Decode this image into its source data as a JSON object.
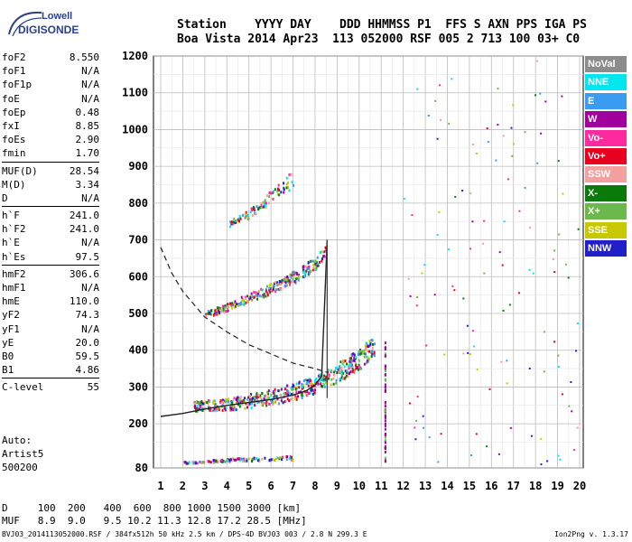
{
  "logo": {
    "line1": "Lowell",
    "line2": "DIGISONDE"
  },
  "header": {
    "labels": "Station    YYYY DAY    DDD HHMMSS P1  FFS S AXN PPS IGA PS",
    "values": "Boa Vista 2014 Apr23  113 052000 RSF 005 2 713 100 03+ C0"
  },
  "params": [
    {
      "k": "foF2",
      "v": "8.550"
    },
    {
      "k": "foF1",
      "v": "N/A"
    },
    {
      "k": "foF1p",
      "v": "N/A"
    },
    {
      "k": "foE",
      "v": "N/A"
    },
    {
      "k": "foEp",
      "v": "0.48"
    },
    {
      "k": "fxI",
      "v": "8.85"
    },
    {
      "k": "foEs",
      "v": "2.90"
    },
    {
      "k": "fmin",
      "v": "1.70"
    },
    {
      "k": "MUF(D)",
      "v": "28.54"
    },
    {
      "k": "M(D)",
      "v": "3.34"
    },
    {
      "k": "D",
      "v": "N/A"
    },
    {
      "k": "h`F",
      "v": "241.0"
    },
    {
      "k": "h`F2",
      "v": "241.0"
    },
    {
      "k": "h`E",
      "v": "N/A"
    },
    {
      "k": "h`Es",
      "v": "97.5"
    },
    {
      "k": "hmF2",
      "v": "306.6"
    },
    {
      "k": "hmF1",
      "v": "N/A"
    },
    {
      "k": "hmE",
      "v": "110.0"
    },
    {
      "k": "yF2",
      "v": "74.3"
    },
    {
      "k": "yF1",
      "v": "N/A"
    },
    {
      "k": "yE",
      "v": "20.0"
    },
    {
      "k": "B0",
      "v": "59.5"
    },
    {
      "k": "B1",
      "v": "4.86"
    },
    {
      "k": "C-level",
      "v": "55"
    }
  ],
  "auto": {
    "line1": "Auto:",
    "line2": "Artist5",
    "line3": "500200"
  },
  "legend": [
    {
      "label": "NoVal",
      "color": "#8c8c8c"
    },
    {
      "label": "NNE",
      "color": "#00e5ee"
    },
    {
      "label": "E",
      "color": "#3a9cf0"
    },
    {
      "label": "W",
      "color": "#a0009c"
    },
    {
      "label": "Vo-",
      "color": "#ff2aa0"
    },
    {
      "label": "Vo+",
      "color": "#e80020"
    },
    {
      "label": "SSW",
      "color": "#f4a0a0"
    },
    {
      "label": "X-",
      "color": "#0a7a0a"
    },
    {
      "label": "X+",
      "color": "#6cb84a"
    },
    {
      "label": "SSE",
      "color": "#c8c800"
    },
    {
      "label": "NNW",
      "color": "#2020c8"
    }
  ],
  "footer": {
    "d_row": "D     100  200   400  600  800 1000 1500 3000 [km]",
    "muf_row": "MUF   8.9  9.0   9.5 10.2 11.3 12.8 17.2 28.5 [MHz]"
  },
  "bottom": {
    "left": "BVJ03_2014113052000.RSF / 384fx512h 50 kHz 2.5 km / DPS-4D BVJ03 003 / 2.8 N 299.3 E",
    "right": "Ion2Png v. 1.3.17"
  },
  "chart_data": {
    "type": "scatter",
    "title": "",
    "xlabel": "",
    "ylabel": "",
    "xlim": [
      1,
      20
    ],
    "ylim": [
      80,
      1200
    ],
    "xticks": [
      1,
      2,
      3,
      4,
      5,
      6,
      7,
      8,
      9,
      10,
      11,
      12,
      13,
      14,
      15,
      16,
      17,
      18,
      19,
      20
    ],
    "yticks": [
      80,
      200,
      300,
      400,
      500,
      600,
      700,
      800,
      900,
      1000,
      1100,
      1200
    ],
    "grid": true,
    "traces": [
      {
        "name": "F2 O-trace",
        "x": [
          2.5,
          4,
          5,
          6,
          7,
          8,
          9,
          10,
          10.7
        ],
        "y": [
          250,
          255,
          265,
          275,
          290,
          310,
          340,
          380,
          420
        ]
      },
      {
        "name": "F2 2-hop",
        "x": [
          3,
          4,
          5,
          6,
          7,
          8,
          8.5
        ],
        "y": [
          500,
          520,
          545,
          570,
          600,
          640,
          670
        ]
      },
      {
        "name": "F2 3-hop",
        "x": [
          4,
          5,
          6,
          7
        ],
        "y": [
          740,
          775,
          820,
          870
        ]
      },
      {
        "name": "Es",
        "x": [
          2,
          3,
          4,
          5,
          6,
          7
        ],
        "y": [
          97,
          100,
          104,
          106,
          108,
          110
        ]
      }
    ],
    "profile": {
      "x": [
        1,
        2,
        3,
        4,
        5,
        6,
        7,
        7.6,
        8.0,
        8.3,
        8.55
      ],
      "y": [
        220,
        228,
        240,
        250,
        258,
        266,
        278,
        290,
        305,
        330,
        700
      ]
    },
    "dashed_curve": {
      "x": [
        1,
        1.5,
        2,
        3,
        4,
        5,
        6,
        7,
        8,
        8.55
      ],
      "y": [
        680,
        610,
        560,
        490,
        450,
        415,
        390,
        365,
        350,
        340
      ]
    },
    "markers": {
      "foF2": 8.55,
      "fxI": 8.85
    }
  }
}
